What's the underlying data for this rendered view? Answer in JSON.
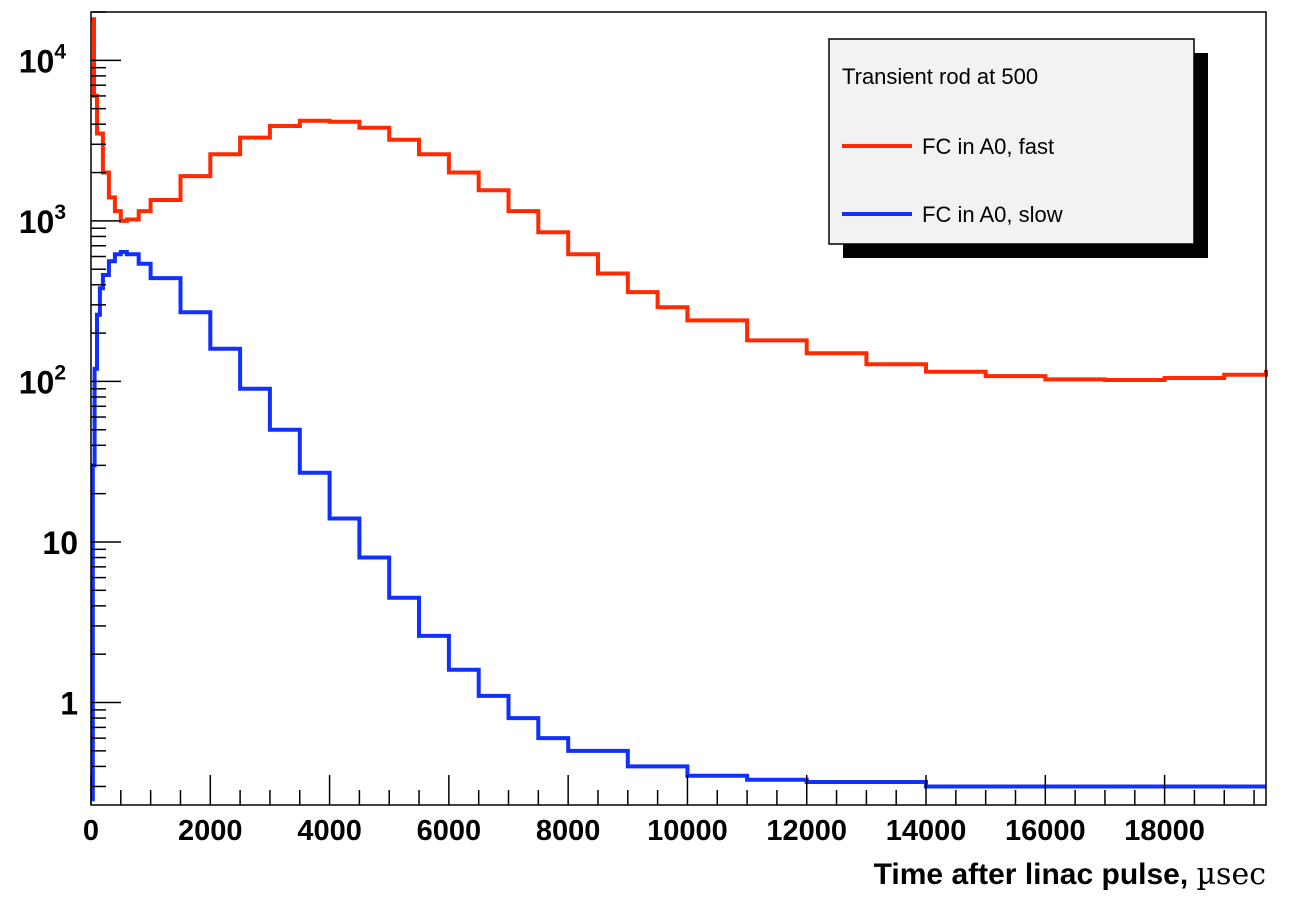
{
  "chart_data": {
    "type": "line",
    "title": "",
    "xlabel": "Time after linac pulse, ",
    "xlabel_unit": "µsec",
    "ylabel": "",
    "xlim": [
      0,
      19700
    ],
    "ylim": [
      0.23,
      20000
    ],
    "y_scale": "log",
    "grid": false,
    "legend_position": "top-right",
    "legend_header": "Transient rod at 500",
    "x_ticks": [
      {
        "value": 0,
        "label": "0"
      },
      {
        "value": 2000,
        "label": "2000"
      },
      {
        "value": 4000,
        "label": "4000"
      },
      {
        "value": 6000,
        "label": "6000"
      },
      {
        "value": 8000,
        "label": "8000"
      },
      {
        "value": 10000,
        "label": "10000"
      },
      {
        "value": 12000,
        "label": "12000"
      },
      {
        "value": 14000,
        "label": "14000"
      },
      {
        "value": 16000,
        "label": "16000"
      },
      {
        "value": 18000,
        "label": "18000"
      }
    ],
    "y_ticks": [
      {
        "value": 1,
        "base": "1",
        "exp": ""
      },
      {
        "value": 10,
        "base": "10",
        "exp": ""
      },
      {
        "value": 100,
        "base": "10",
        "exp": "2"
      },
      {
        "value": 1000,
        "base": "10",
        "exp": "3"
      },
      {
        "value": 10000,
        "base": "10",
        "exp": "4"
      }
    ],
    "series": [
      {
        "name": "FC in A0, fast",
        "color": "#ff2a00",
        "x": [
          0,
          50,
          100,
          200,
          300,
          400,
          500,
          600,
          800,
          1000,
          1500,
          2000,
          2500,
          3000,
          3500,
          4000,
          4500,
          5000,
          5500,
          6000,
          6500,
          7000,
          7500,
          8000,
          8500,
          9000,
          9500,
          10000,
          11000,
          12000,
          13000,
          14000,
          15000,
          16000,
          17000,
          18000,
          19000,
          19700
        ],
        "y": [
          18000,
          6000,
          3500,
          2000,
          1400,
          1150,
          1000,
          1020,
          1150,
          1350,
          1900,
          2600,
          3300,
          3900,
          4200,
          4150,
          3800,
          3200,
          2600,
          2000,
          1550,
          1150,
          850,
          620,
          470,
          360,
          290,
          240,
          180,
          150,
          128,
          115,
          108,
          103,
          102,
          105,
          110,
          118
        ]
      },
      {
        "name": "FC in A0, slow",
        "color": "#1030ff",
        "x": [
          0,
          30,
          60,
          100,
          150,
          200,
          300,
          400,
          500,
          600,
          800,
          1000,
          1500,
          2000,
          2500,
          3000,
          3500,
          4000,
          4500,
          5000,
          5500,
          6000,
          6500,
          7000,
          7500,
          8000,
          9000,
          10000,
          11000,
          12000,
          14000,
          16000,
          18000,
          19700
        ],
        "y": [
          0.25,
          30,
          120,
          260,
          380,
          460,
          560,
          620,
          640,
          620,
          540,
          440,
          270,
          160,
          90,
          50,
          27,
          14,
          8,
          4.5,
          2.6,
          1.6,
          1.1,
          0.8,
          0.6,
          0.5,
          0.4,
          0.35,
          0.33,
          0.32,
          0.3,
          0.3,
          0.3,
          0.3
        ]
      }
    ]
  }
}
